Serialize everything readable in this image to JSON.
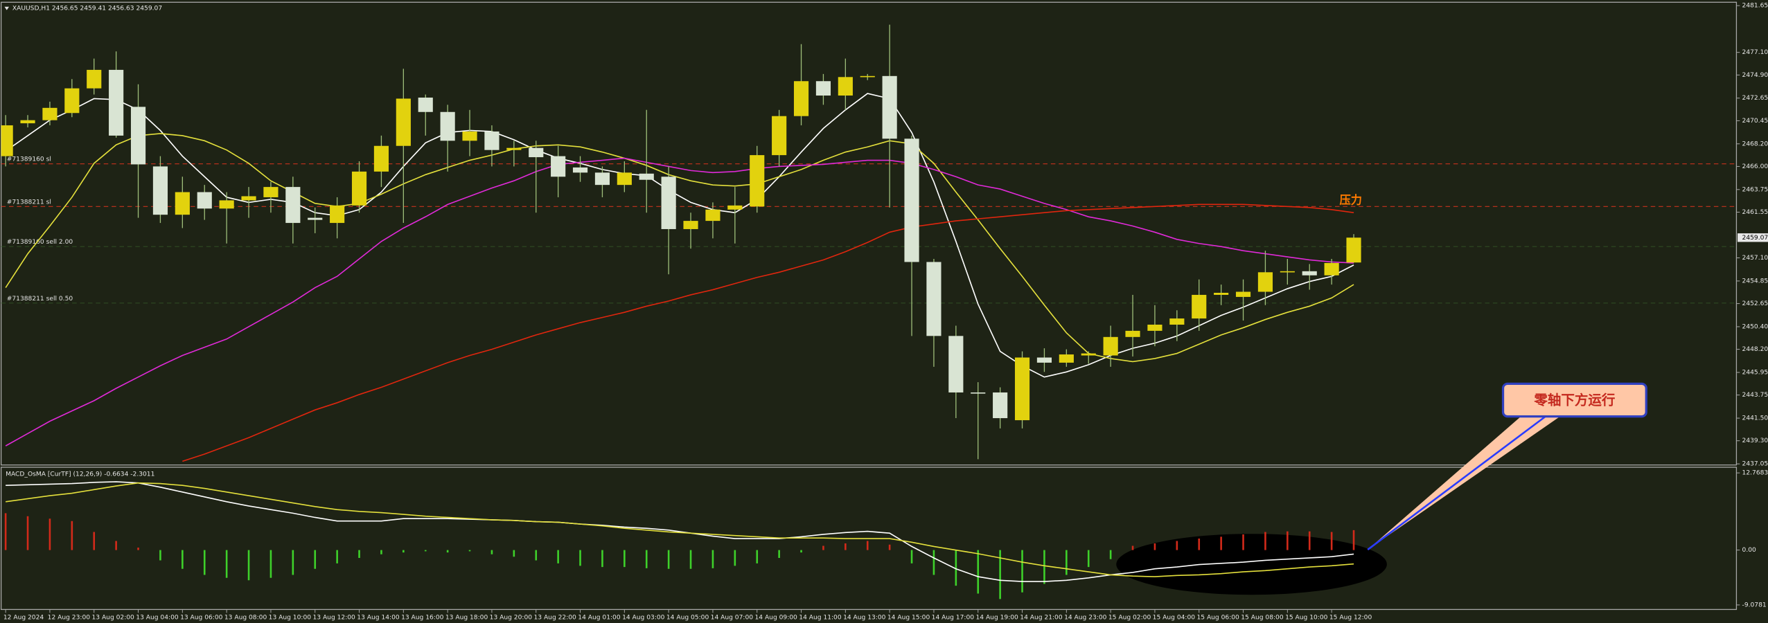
{
  "chart_data": [
    {
      "type": "candlestick",
      "title": "XAUUSD,H1  2456.65 2459.41 2456.63 2459.07",
      "categories": [
        "12 Aug 2024",
        null,
        "12 Aug 23:00",
        null,
        "13 Aug 02:00",
        null,
        "13 Aug 04:00",
        null,
        "13 Aug 06:00",
        null,
        "13 Aug 08:00",
        null,
        "13 Aug 10:00",
        null,
        "13 Aug 12:00",
        null,
        "13 Aug 14:00",
        null,
        "13 Aug 16:00",
        null,
        "13 Aug 18:00",
        null,
        "13 Aug 20:00",
        null,
        "13 Aug 22:00",
        null,
        "14 Aug 01:00",
        null,
        "14 Aug 03:00",
        null,
        "14 Aug 05:00",
        null,
        "14 Aug 07:00",
        null,
        "14 Aug 09:00",
        null,
        "14 Aug 11:00",
        null,
        "14 Aug 13:00",
        null,
        "14 Aug 15:00",
        null,
        "14 Aug 17:00",
        null,
        "14 Aug 19:00",
        null,
        "14 Aug 21:00",
        null,
        "14 Aug 23:00",
        null,
        "15 Aug 02:00",
        null,
        "15 Aug 04:00",
        null,
        "15 Aug 06:00",
        null,
        "15 Aug 08:00",
        null,
        "15 Aug 10:00",
        null,
        "15 Aug 12:00",
        null
      ],
      "open": [
        2467.0,
        2470.2,
        2470.5,
        2471.2,
        2473.6,
        2475.4,
        2471.8,
        2466.0,
        2461.3,
        2463.5,
        2461.9,
        2462.7,
        2463.0,
        2464.0,
        2461.0,
        2460.5,
        2462.2,
        2465.5,
        2468.0,
        2472.7,
        2471.3,
        2468.5,
        2469.4,
        2467.6,
        2467.8,
        2467.0,
        2465.9,
        2465.4,
        2464.2,
        2465.3,
        2465.0,
        2459.9,
        2460.7,
        2461.8,
        2462.1,
        2467.1,
        2470.9,
        2474.3,
        2472.9,
        2474.7,
        2474.8,
        2468.7,
        2456.7,
        2449.5,
        2444.0,
        2444.0,
        2441.3,
        2447.4,
        2446.9,
        2447.6,
        2447.6,
        2449.4,
        2450.0,
        2450.6,
        2451.2,
        2453.5,
        2453.3,
        2453.8,
        2455.7,
        2455.8,
        2455.4,
        2456.65
      ],
      "high": [
        2471.0,
        2471.0,
        2472.3,
        2474.5,
        2476.5,
        2477.2,
        2474.0,
        2467.0,
        2465.0,
        2464.2,
        2463.5,
        2464.0,
        2464.5,
        2465.0,
        2462.0,
        2463.0,
        2466.5,
        2469.0,
        2475.5,
        2473.0,
        2472.0,
        2471.5,
        2470.0,
        2468.5,
        2468.5,
        2468.0,
        2467.0,
        2466.0,
        2466.5,
        2471.5,
        2466.0,
        2461.5,
        2462.5,
        2464.0,
        2468.0,
        2471.5,
        2477.9,
        2475.0,
        2476.5,
        2475.0,
        2479.8,
        2469.0,
        2457.0,
        2450.5,
        2445.0,
        2444.5,
        2448.0,
        2448.3,
        2448.2,
        2448.0,
        2450.5,
        2453.5,
        2452.5,
        2452.0,
        2455.0,
        2454.5,
        2455.0,
        2457.8,
        2457.0,
        2456.5,
        2457.0,
        2459.41
      ],
      "low": [
        2466.0,
        2469.8,
        2470.0,
        2470.8,
        2473.0,
        2468.8,
        2461.0,
        2460.5,
        2460.0,
        2460.8,
        2458.5,
        2461.0,
        2461.5,
        2458.5,
        2459.5,
        2459.0,
        2461.5,
        2464.0,
        2460.5,
        2469.0,
        2465.5,
        2467.0,
        2466.0,
        2466.0,
        2461.5,
        2463.0,
        2464.5,
        2463.0,
        2463.5,
        2461.5,
        2455.5,
        2458.0,
        2459.0,
        2458.5,
        2461.5,
        2466.0,
        2470.0,
        2472.0,
        2471.5,
        2474.4,
        2462.0,
        2449.5,
        2446.5,
        2441.5,
        2437.5,
        2440.5,
        2440.5,
        2446.0,
        2446.5,
        2446.8,
        2446.5,
        2447.5,
        2448.5,
        2449.0,
        2450.0,
        2452.5,
        2451.0,
        2452.5,
        2454.5,
        2454.0,
        2454.5,
        2456.63
      ],
      "close": [
        2470.0,
        2470.5,
        2471.7,
        2473.6,
        2475.4,
        2469.0,
        2466.2,
        2461.3,
        2463.5,
        2461.9,
        2462.7,
        2463.1,
        2464.0,
        2460.5,
        2460.8,
        2462.2,
        2465.5,
        2468.0,
        2472.6,
        2471.3,
        2468.5,
        2469.4,
        2467.6,
        2467.8,
        2466.9,
        2465.0,
        2465.4,
        2464.2,
        2465.4,
        2464.7,
        2459.9,
        2460.7,
        2461.8,
        2462.2,
        2467.1,
        2470.9,
        2474.3,
        2472.9,
        2474.7,
        2474.8,
        2468.7,
        2456.7,
        2449.5,
        2444.0,
        2443.9,
        2441.5,
        2447.4,
        2446.9,
        2447.7,
        2447.8,
        2449.4,
        2450.0,
        2450.6,
        2451.2,
        2453.5,
        2453.7,
        2453.8,
        2455.7,
        2455.8,
        2455.4,
        2456.6,
        2459.07
      ],
      "up_color": "#e2d20e",
      "down_color": "#d9e4d3",
      "wick_color": "#9fbf7a",
      "series": [
        {
          "color": "#ffffff",
          "values": [
            2467.5,
            2469.0,
            2470.5,
            2471.5,
            2472.6,
            2472.5,
            2471.5,
            2469.5,
            2467.0,
            2465.0,
            2463.0,
            2462.5,
            2462.8,
            2462.5,
            2461.5,
            2461.2,
            2461.8,
            2463.5,
            2466.0,
            2468.3,
            2469.3,
            2469.5,
            2469.4,
            2468.6,
            2467.6,
            2466.8,
            2466.3,
            2465.7,
            2465.3,
            2465.1,
            2463.7,
            2462.5,
            2461.8,
            2461.5,
            2462.8,
            2465.0,
            2467.4,
            2469.7,
            2471.5,
            2473.1,
            2472.6,
            2469.3,
            2464.5,
            2458.7,
            2452.6,
            2448.0,
            2446.6,
            2445.5,
            2446.0,
            2446.7,
            2447.6,
            2448.3,
            2448.8,
            2449.5,
            2450.5,
            2451.5,
            2452.3,
            2453.2,
            2454.1,
            2454.8,
            2455.3,
            2456.4
          ]
        },
        {
          "color": "#e4e03c",
          "values": [
            2454.2,
            2457.5,
            2460.2,
            2463.0,
            2466.3,
            2468.1,
            2469.0,
            2469.2,
            2469.0,
            2468.5,
            2467.6,
            2466.3,
            2464.6,
            2463.5,
            2462.4,
            2462.1,
            2462.4,
            2463.3,
            2464.3,
            2465.2,
            2465.9,
            2466.6,
            2467.1,
            2467.7,
            2468.0,
            2468.1,
            2467.9,
            2467.4,
            2466.8,
            2466.1,
            2465.2,
            2464.6,
            2464.2,
            2464.1,
            2464.3,
            2465.0,
            2465.7,
            2466.6,
            2467.4,
            2467.9,
            2468.5,
            2468.2,
            2466.3,
            2463.5,
            2460.8,
            2458.0,
            2455.3,
            2452.5,
            2449.8,
            2447.8,
            2447.3,
            2447.0,
            2447.3,
            2447.8,
            2448.7,
            2449.6,
            2450.3,
            2451.1,
            2451.8,
            2452.4,
            2453.2,
            2454.5
          ]
        },
        {
          "color": "#e02ad8",
          "values": [
            2438.8,
            2440.0,
            2441.2,
            2442.2,
            2443.2,
            2444.4,
            2445.5,
            2446.6,
            2447.6,
            2448.4,
            2449.2,
            2450.4,
            2451.6,
            2452.8,
            2454.2,
            2455.3,
            2457.0,
            2458.7,
            2460.0,
            2461.1,
            2462.3,
            2463.1,
            2463.9,
            2464.6,
            2465.5,
            2466.2,
            2466.4,
            2466.6,
            2466.8,
            2466.4,
            2466.0,
            2465.6,
            2465.4,
            2465.5,
            2465.8,
            2466.0,
            2466.1,
            2466.2,
            2466.4,
            2466.6,
            2466.6,
            2466.3,
            2465.7,
            2465.0,
            2464.2,
            2463.8,
            2463.1,
            2462.4,
            2461.8,
            2461.1,
            2460.7,
            2460.2,
            2459.6,
            2458.9,
            2458.5,
            2458.2,
            2457.8,
            2457.5,
            2457.2,
            2456.9,
            2456.7,
            2456.6
          ]
        },
        {
          "color": "#e0260e",
          "values": [
            null,
            null,
            null,
            null,
            null,
            null,
            null,
            null,
            2437.3,
            2438.0,
            2438.8,
            2439.6,
            2440.5,
            2441.4,
            2442.3,
            2443.0,
            2443.8,
            2444.5,
            2445.3,
            2446.1,
            2446.9,
            2447.6,
            2448.2,
            2448.9,
            2449.6,
            2450.2,
            2450.8,
            2451.3,
            2451.8,
            2452.4,
            2452.9,
            2453.5,
            2454.0,
            2454.6,
            2455.2,
            2455.7,
            2456.3,
            2456.9,
            2457.7,
            2458.6,
            2459.6,
            2460.1,
            2460.4,
            2460.7,
            2460.9,
            2461.1,
            2461.3,
            2461.5,
            2461.7,
            2461.8,
            2461.9,
            2462.0,
            2462.1,
            2462.2,
            2462.3,
            2462.3,
            2462.3,
            2462.2,
            2462.1,
            2462.0,
            2461.8,
            2461.5
          ]
        }
      ],
      "levels": [
        {
          "label": "#71389160 sl",
          "value": 2466.25,
          "color": "#c8321e"
        },
        {
          "label": "#71388211 sl",
          "value": 2462.1,
          "color": "#c8321e"
        },
        {
          "label": "#71389160 sell 2.00",
          "value": 2458.2,
          "color": "#2f4a22"
        },
        {
          "label": "#71388211 sell 0.50",
          "value": 2452.7,
          "color": "#2f4a22"
        }
      ],
      "annotation": "压力",
      "ylim": [
        2437.05,
        2481.65
      ],
      "yticks": [
        2481.65,
        {
          "value": 2477.1,
          "label": "2477.10"
        },
        {
          "value": 2474.9,
          "label": "2474.90"
        },
        2472.65,
        2470.45,
        {
          "value": 2468.2,
          "label": "2468.20"
        },
        {
          "value": 2466,
          "label": "2466.00"
        },
        2463.75,
        2461.55,
        {
          "value": 2457.1,
          "label": "2457.10"
        },
        2454.85,
        2452.65,
        {
          "value": 2450.4,
          "label": "2450.40"
        },
        {
          "value": 2448.2,
          "label": "2448.20"
        },
        2445.95,
        2443.75,
        {
          "value": 2441.5,
          "label": "2441.50"
        },
        {
          "value": 2439.3,
          "label": "2439.30"
        },
        2437.05
      ]
    },
    {
      "type": "macd",
      "title": "MACD_OsMA [CurTF] (12,26,9) -0.6634 -2.3011",
      "values": [
        6.1,
        5.6,
        5.2,
        4.8,
        3.0,
        1.5,
        0.4,
        -1.7,
        -3.1,
        -4.1,
        -4.6,
        -5.0,
        -4.6,
        -4.1,
        -3.1,
        -2.2,
        -1.3,
        -0.7,
        -0.4,
        -0.2,
        -0.4,
        -0.2,
        -0.7,
        -1.1,
        -1.7,
        -2.2,
        -2.6,
        -2.8,
        -2.8,
        -3.0,
        -3.1,
        -3.1,
        -3.0,
        -2.6,
        -2.2,
        -1.3,
        -0.4,
        0.7,
        1.1,
        1.5,
        0.9,
        -2.2,
        -4.1,
        -5.9,
        -7.2,
        -8.1,
        -7.0,
        -5.6,
        -4.1,
        -2.8,
        -1.5,
        0.7,
        1.1,
        1.5,
        1.9,
        2.2,
        2.6,
        3.0,
        3.1,
        3.1,
        3.0,
        3.3
      ],
      "up_color": "#d22a1a",
      "down_color": "#3ed02a",
      "series": [
        {
          "color": "#ffffff",
          "values": [
            10.7,
            10.8,
            10.9,
            11.0,
            11.2,
            11.3,
            11.1,
            10.4,
            9.6,
            8.8,
            8.0,
            7.3,
            6.7,
            6.1,
            5.4,
            4.8,
            4.8,
            4.8,
            5.2,
            5.2,
            5.2,
            5.1,
            5.0,
            4.9,
            4.7,
            4.6,
            4.3,
            4.1,
            3.8,
            3.6,
            3.3,
            2.8,
            2.3,
            1.9,
            1.9,
            1.9,
            2.2,
            2.6,
            2.9,
            3.1,
            2.8,
            0.6,
            -1.3,
            -3.1,
            -4.4,
            -5.0,
            -5.2,
            -5.2,
            -5.0,
            -4.6,
            -4.1,
            -3.7,
            -3.1,
            -2.8,
            -2.4,
            -2.2,
            -2.0,
            -1.7,
            -1.5,
            -1.3,
            -1.1,
            -0.6634
          ]
        },
        {
          "color": "#e4e03c",
          "values": [
            8.0,
            8.5,
            9.0,
            9.4,
            10.0,
            10.6,
            11.1,
            11.0,
            10.7,
            10.2,
            9.6,
            9.0,
            8.4,
            7.8,
            7.2,
            6.7,
            6.4,
            6.2,
            5.9,
            5.6,
            5.4,
            5.2,
            5.0,
            4.9,
            4.7,
            4.6,
            4.3,
            4.0,
            3.6,
            3.3,
            3.0,
            2.8,
            2.6,
            2.4,
            2.2,
            2.0,
            2.0,
            2.0,
            1.9,
            1.9,
            1.9,
            1.3,
            0.6,
            0,
            -0.6,
            -1.3,
            -2.0,
            -2.6,
            -3.1,
            -3.6,
            -4.1,
            -4.3,
            -4.4,
            -4.2,
            -4.1,
            -3.9,
            -3.6,
            -3.4,
            -3.1,
            -2.8,
            -2.6,
            -2.3011
          ]
        }
      ],
      "callout": "零轴下方运行",
      "ylim": [
        -9.0781,
        12.7683
      ],
      "yticks": [
        12.7683,
        {
          "value": 0,
          "label": "0.00"
        },
        -9.0781
      ]
    }
  ]
}
